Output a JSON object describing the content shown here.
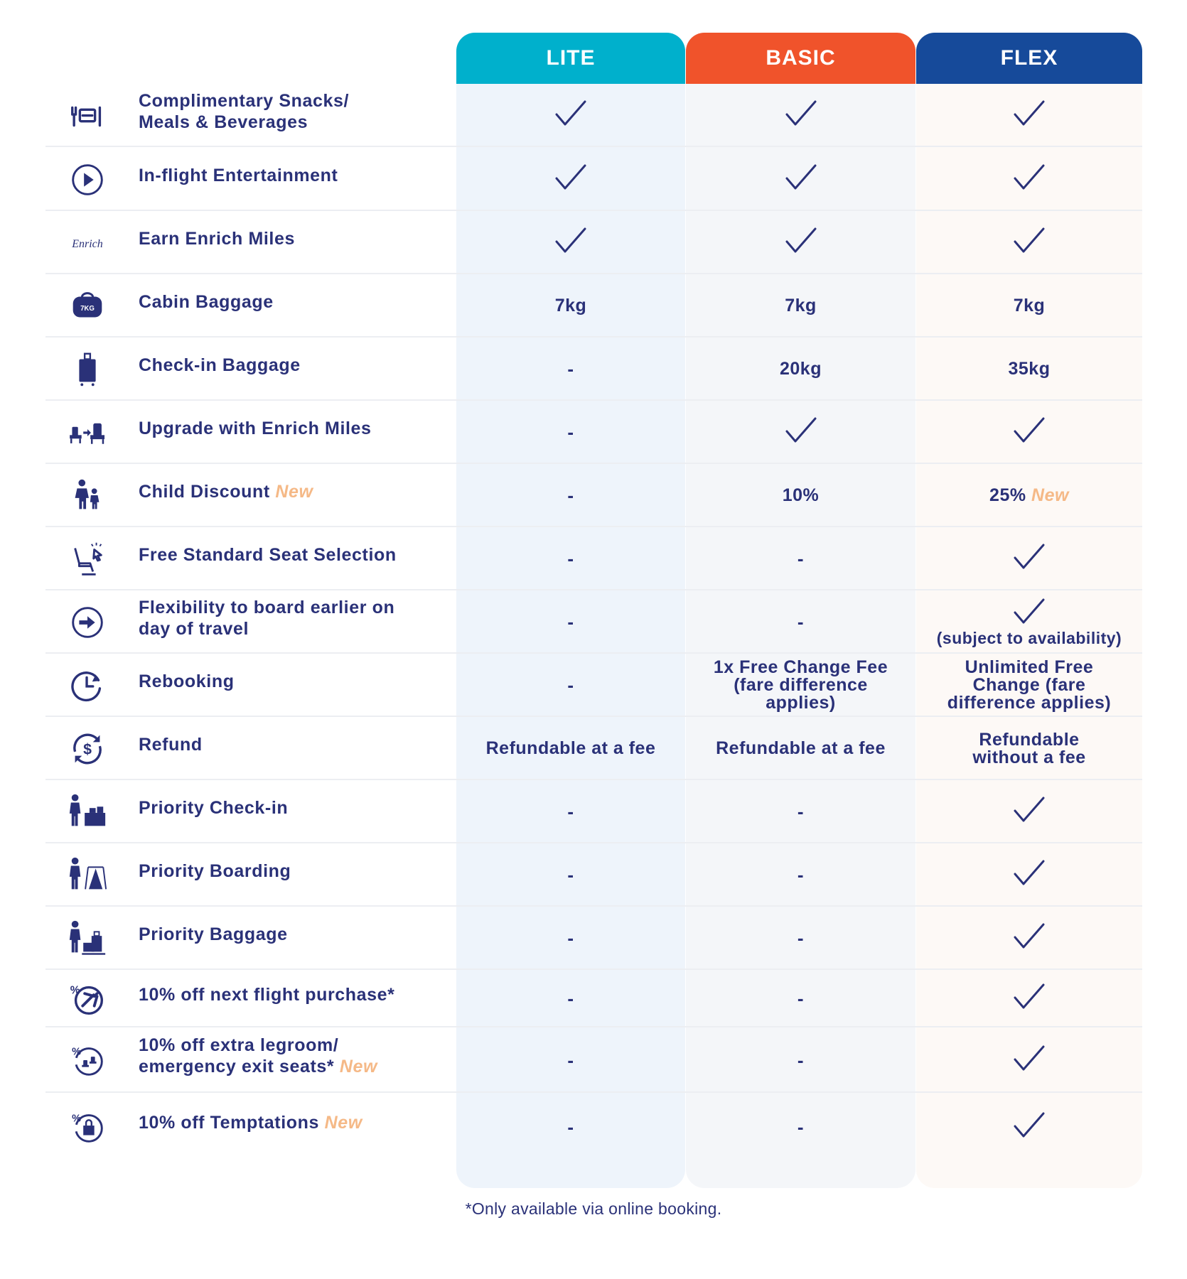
{
  "tiers": [
    {
      "name": "LITE",
      "color": "#00b0cc"
    },
    {
      "name": "BASIC",
      "color": "#f0532b"
    },
    {
      "name": "FLEX",
      "color": "#164a9a"
    }
  ],
  "new_label": "New",
  "new_color": "#f5b987",
  "text_color": "#2a3178",
  "rows": [
    {
      "icon": "cutlery-tray-icon",
      "label": "Complimentary Snacks/\nMeals & Beverages",
      "new": false,
      "values": [
        {
          "type": "check"
        },
        {
          "type": "check"
        },
        {
          "type": "check"
        }
      ]
    },
    {
      "icon": "play-icon",
      "label": "In-flight Entertainment",
      "new": false,
      "values": [
        {
          "type": "check"
        },
        {
          "type": "check"
        },
        {
          "type": "check"
        }
      ]
    },
    {
      "icon": "enrich-logo-icon",
      "label": "Earn Enrich Miles",
      "new": false,
      "values": [
        {
          "type": "check"
        },
        {
          "type": "check"
        },
        {
          "type": "check"
        }
      ]
    },
    {
      "icon": "cabin-bag-icon",
      "label": "Cabin Baggage",
      "new": false,
      "values": [
        {
          "type": "text",
          "text": "7kg"
        },
        {
          "type": "text",
          "text": "7kg"
        },
        {
          "type": "text",
          "text": "7kg"
        }
      ]
    },
    {
      "icon": "suitcase-icon",
      "label": "Check-in Baggage",
      "new": false,
      "values": [
        {
          "type": "dash"
        },
        {
          "type": "text",
          "text": "20kg"
        },
        {
          "type": "text",
          "text": "35kg"
        }
      ]
    },
    {
      "icon": "seat-upgrade-icon",
      "label": "Upgrade with Enrich Miles",
      "new": false,
      "values": [
        {
          "type": "dash"
        },
        {
          "type": "check"
        },
        {
          "type": "check"
        }
      ]
    },
    {
      "icon": "adult-child-icon",
      "label": "Child Discount",
      "new": true,
      "values": [
        {
          "type": "dash"
        },
        {
          "type": "text",
          "text": "10%"
        },
        {
          "type": "text",
          "text": "25%",
          "new": true
        }
      ]
    },
    {
      "icon": "seat-select-icon",
      "label": "Free Standard Seat Selection",
      "new": false,
      "values": [
        {
          "type": "dash"
        },
        {
          "type": "dash"
        },
        {
          "type": "check"
        }
      ]
    },
    {
      "icon": "arrow-circle-icon",
      "label": "Flexibility to board earlier on\nday of travel",
      "new": false,
      "values": [
        {
          "type": "dash"
        },
        {
          "type": "dash"
        },
        {
          "type": "check",
          "note": "(subject to availability)"
        }
      ]
    },
    {
      "icon": "clock-rebook-icon",
      "label": "Rebooking",
      "new": false,
      "values": [
        {
          "type": "dash"
        },
        {
          "type": "text",
          "text": "1x Free Change Fee\n(fare difference\napplies)"
        },
        {
          "type": "text",
          "text": "Unlimited Free\nChange (fare\ndifference applies)"
        }
      ]
    },
    {
      "icon": "refund-dollar-icon",
      "label": "Refund",
      "new": false,
      "values": [
        {
          "type": "text",
          "text": "Refundable at a fee"
        },
        {
          "type": "text",
          "text": "Refundable at a fee"
        },
        {
          "type": "text",
          "text": "Refundable\nwithout a fee"
        }
      ]
    },
    {
      "icon": "priority-checkin-icon",
      "label": "Priority Check-in",
      "new": false,
      "values": [
        {
          "type": "dash"
        },
        {
          "type": "dash"
        },
        {
          "type": "check"
        }
      ]
    },
    {
      "icon": "priority-boarding-icon",
      "label": "Priority Boarding",
      "new": false,
      "values": [
        {
          "type": "dash"
        },
        {
          "type": "dash"
        },
        {
          "type": "check"
        }
      ]
    },
    {
      "icon": "priority-baggage-icon",
      "label": "Priority Baggage",
      "new": false,
      "values": [
        {
          "type": "dash"
        },
        {
          "type": "dash"
        },
        {
          "type": "check"
        }
      ]
    },
    {
      "icon": "discount-flight-icon",
      "label": "10% off next flight purchase*",
      "new": false,
      "values": [
        {
          "type": "dash"
        },
        {
          "type": "dash"
        },
        {
          "type": "check"
        }
      ]
    },
    {
      "icon": "discount-seat-icon",
      "label": "10% off extra legroom/\nemergency exit seats*",
      "new": true,
      "values": [
        {
          "type": "dash"
        },
        {
          "type": "dash"
        },
        {
          "type": "check"
        }
      ]
    },
    {
      "icon": "discount-shopping-icon",
      "label": "10% off Temptations",
      "new": true,
      "values": [
        {
          "type": "dash"
        },
        {
          "type": "dash"
        },
        {
          "type": "check"
        }
      ]
    }
  ],
  "footnote": "*Only available via online booking."
}
